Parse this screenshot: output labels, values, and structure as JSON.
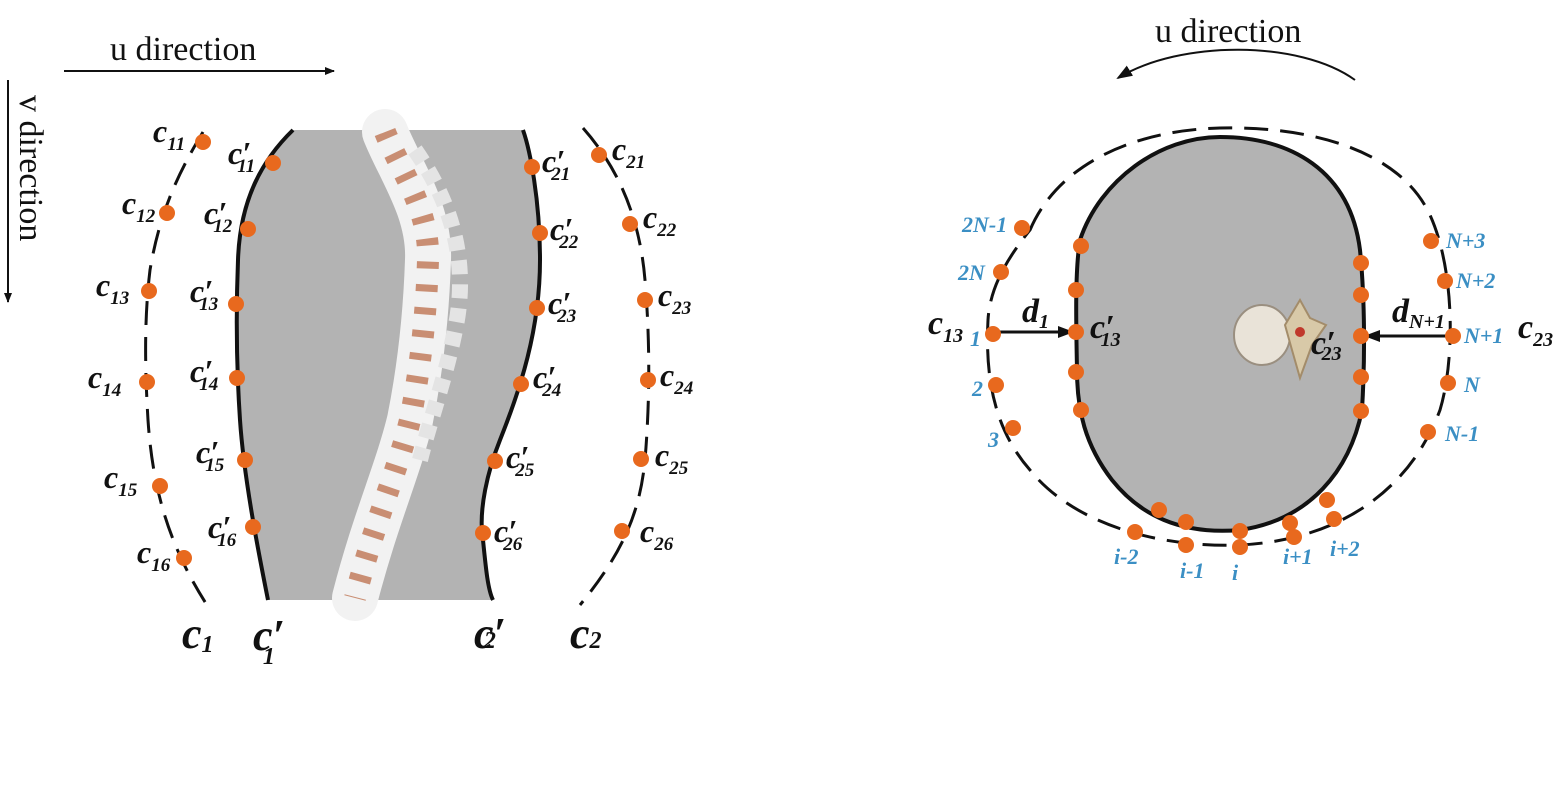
{
  "left_panel": {
    "u_direction_label": "u direction",
    "v_direction_label": "v direction",
    "c1_points": [
      {
        "base": "c",
        "sub": "11"
      },
      {
        "base": "c",
        "sub": "12"
      },
      {
        "base": "c",
        "sub": "13"
      },
      {
        "base": "c",
        "sub": "14"
      },
      {
        "base": "c",
        "sub": "15"
      },
      {
        "base": "c",
        "sub": "16"
      }
    ],
    "c1p_points": [
      {
        "base": "c′",
        "sub": "11"
      },
      {
        "base": "c′",
        "sub": "12"
      },
      {
        "base": "c′",
        "sub": "13"
      },
      {
        "base": "c′",
        "sub": "14"
      },
      {
        "base": "c′",
        "sub": "15"
      },
      {
        "base": "c′",
        "sub": "16"
      }
    ],
    "c2p_points": [
      {
        "base": "c′",
        "sub": "21"
      },
      {
        "base": "c′",
        "sub": "22"
      },
      {
        "base": "c′",
        "sub": "23"
      },
      {
        "base": "c′",
        "sub": "24"
      },
      {
        "base": "c′",
        "sub": "25"
      },
      {
        "base": "c′",
        "sub": "26"
      }
    ],
    "c2_points": [
      {
        "base": "c",
        "sub": "21"
      },
      {
        "base": "c",
        "sub": "22"
      },
      {
        "base": "c",
        "sub": "23"
      },
      {
        "base": "c",
        "sub": "24"
      },
      {
        "base": "c",
        "sub": "25"
      },
      {
        "base": "c",
        "sub": "26"
      }
    ],
    "curve_labels": {
      "c1": {
        "base": "c",
        "sub": "1"
      },
      "c1p": {
        "base": "c′",
        "sub": "1"
      },
      "c2p": {
        "base": "c′",
        "sub": "2"
      },
      "c2": {
        "base": "c",
        "sub": "2"
      }
    }
  },
  "right_panel": {
    "u_direction_label": "u direction",
    "c13": {
      "base": "c",
      "sub": "13"
    },
    "c13p": {
      "base": "c′",
      "sub": "13"
    },
    "c23": {
      "base": "c",
      "sub": "23"
    },
    "c23p": {
      "base": "c′",
      "sub": "23"
    },
    "d1": {
      "base": "d",
      "sub": "1"
    },
    "dN1": {
      "base": "d",
      "sub": "N+1"
    },
    "index_labels": {
      "i2N1": "2N-1",
      "i2N": "2N",
      "i1": "1",
      "i2": "2",
      "i3": "3",
      "im2": "i-2",
      "im1": "i-1",
      "ii": "i",
      "ip1": "i+1",
      "ip2": "i+2",
      "iN3": "N+3",
      "iN2": "N+2",
      "iN1": "N+1",
      "iN": "N",
      "iNm1": "N-1"
    }
  },
  "colors": {
    "point": "#e8691e",
    "index_text": "#3b8fc4",
    "body_fill": "#b3b3b3",
    "curve": "#111111"
  }
}
